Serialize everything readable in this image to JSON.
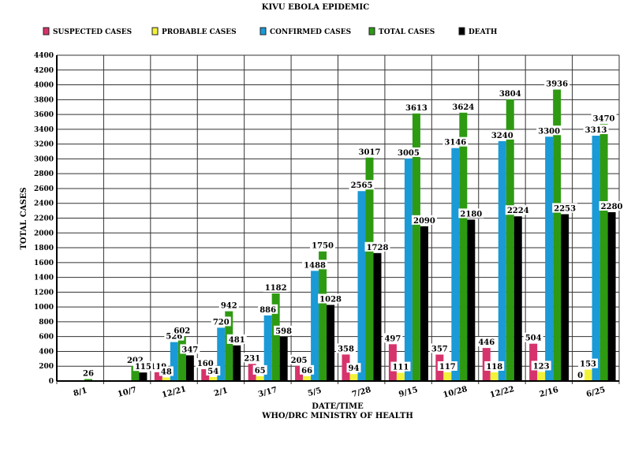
{
  "chart_data": {
    "type": "bar",
    "title": "KIVU EBOLA EPIDEMIC",
    "xlabel": "DATE/TIME",
    "source": "WHO/DRC MINISTRY OF HEALTH",
    "ylabel": "TOTAL CASES",
    "ylim": [
      0,
      4400
    ],
    "yticks": [
      0,
      200,
      400,
      600,
      800,
      1000,
      1200,
      1400,
      1600,
      1800,
      2000,
      2200,
      2400,
      2600,
      2800,
      3000,
      3200,
      3400,
      3600,
      3800,
      4000,
      4200,
      4400
    ],
    "grid": true,
    "legend_position": "top",
    "categories": [
      "8/1",
      "10/7",
      "12/21",
      "2/1",
      "3/17",
      "5/5",
      "7/28",
      "9/15",
      "10/28",
      "12/22",
      "2/16",
      "6/25"
    ],
    "series": [
      {
        "name": "SUSPECTED CASES",
        "color": "#d6336c",
        "values": [
          null,
          null,
          119,
          160,
          231,
          205,
          358,
          497,
          357,
          446,
          504,
          0
        ]
      },
      {
        "name": "PROBABLE CASES",
        "color": "#f2f23a",
        "values": [
          null,
          null,
          48,
          54,
          65,
          66,
          94,
          111,
          117,
          118,
          123,
          153
        ]
      },
      {
        "name": "CONFIRMED CASES",
        "color": "#1a9ad6",
        "values": [
          null,
          null,
          526,
          720,
          886,
          1488,
          2565,
          3005,
          3146,
          3240,
          3300,
          3313
        ]
      },
      {
        "name": "TOTAL CASES",
        "color": "#2e9a12",
        "values": [
          26,
          202,
          602,
          942,
          1182,
          1750,
          3017,
          3613,
          3624,
          3804,
          3936,
          3470
        ]
      },
      {
        "name": "DEATH",
        "color": "#000000",
        "values": [
          null,
          115,
          347,
          481,
          598,
          1028,
          1728,
          2090,
          2180,
          2224,
          2253,
          2280
        ]
      }
    ]
  }
}
